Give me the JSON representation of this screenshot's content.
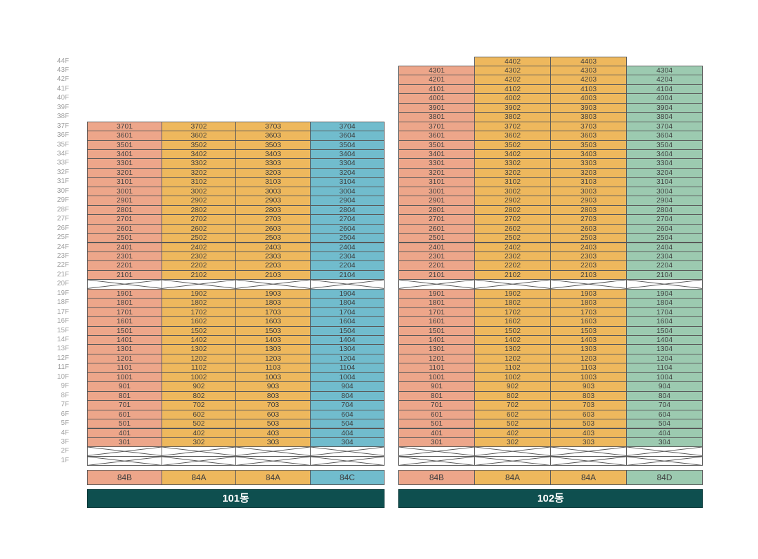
{
  "colors": {
    "B": "#eda68a",
    "A": "#eeb85d",
    "C": "#71bccd",
    "D": "#9ccab0",
    "building_label_bg": "#0e4f4f"
  },
  "floor_labels": [
    "44F",
    "43F",
    "42F",
    "41F",
    "40F",
    "39F",
    "38F",
    "37F",
    "36F",
    "35F",
    "34F",
    "33F",
    "32F",
    "31F",
    "30F",
    "29F",
    "28F",
    "27F",
    "26F",
    "25F",
    "24F",
    "23F",
    "22F",
    "21F",
    "20F",
    "19F",
    "18F",
    "17F",
    "16F",
    "15F",
    "14F",
    "13F",
    "12F",
    "11F",
    "10F",
    "9F",
    "8F",
    "7F",
    "6F",
    "5F",
    "4F",
    "3F",
    "2F",
    "1F"
  ],
  "buildings": [
    {
      "name": "101동",
      "types": [
        "84B",
        "84A",
        "84A",
        "84C"
      ],
      "type_keys": [
        "B",
        "A",
        "A",
        "C"
      ],
      "columns": [
        {
          "top": 37,
          "units": [
            "3701",
            "3601",
            "3501",
            "3401",
            "3301",
            "3201",
            "3101",
            "3001",
            "2901",
            "2801",
            "2701",
            "2601",
            "2501",
            "2401",
            "2301",
            "2201",
            "2101",
            "",
            "1901",
            "1801",
            "1701",
            "1601",
            "1501",
            "1401",
            "1301",
            "1201",
            "1101",
            "1001",
            "901",
            "801",
            "701",
            "601",
            "501",
            "401",
            "301",
            "",
            ""
          ]
        },
        {
          "top": 37,
          "units": [
            "3702",
            "3602",
            "3502",
            "3402",
            "3302",
            "3202",
            "3102",
            "3002",
            "2902",
            "2802",
            "2702",
            "2602",
            "2502",
            "2402",
            "2302",
            "2202",
            "2102",
            "",
            "1902",
            "1802",
            "1702",
            "1602",
            "1502",
            "1402",
            "1302",
            "1202",
            "1102",
            "1002",
            "902",
            "802",
            "702",
            "602",
            "502",
            "402",
            "302",
            "",
            ""
          ]
        },
        {
          "top": 37,
          "units": [
            "3703",
            "3603",
            "3503",
            "3403",
            "3303",
            "3203",
            "3103",
            "3003",
            "2903",
            "2803",
            "2703",
            "2603",
            "2503",
            "2403",
            "2303",
            "2203",
            "2103",
            "",
            "1903",
            "1803",
            "1703",
            "1603",
            "1503",
            "1403",
            "1303",
            "1203",
            "1103",
            "1003",
            "903",
            "803",
            "703",
            "603",
            "503",
            "403",
            "303",
            "",
            ""
          ]
        },
        {
          "top": 37,
          "units": [
            "3704",
            "3604",
            "3504",
            "3404",
            "3304",
            "3204",
            "3104",
            "3004",
            "2904",
            "2804",
            "2704",
            "2604",
            "2504",
            "2404",
            "2304",
            "2204",
            "2104",
            "",
            "1904",
            "1804",
            "1704",
            "1604",
            "1504",
            "1404",
            "1304",
            "1204",
            "1104",
            "1004",
            "904",
            "804",
            "704",
            "604",
            "504",
            "404",
            "304",
            "",
            ""
          ]
        }
      ]
    },
    {
      "name": "102동",
      "types": [
        "84B",
        "84A",
        "84A",
        "84D"
      ],
      "type_keys": [
        "B",
        "A",
        "A",
        "D"
      ],
      "columns": [
        {
          "top": 43,
          "units": [
            "4301",
            "4201",
            "4101",
            "4001",
            "3901",
            "3801",
            "3701",
            "3601",
            "3501",
            "3401",
            "3301",
            "3201",
            "3101",
            "3001",
            "2901",
            "2801",
            "2701",
            "2601",
            "2501",
            "2401",
            "2301",
            "2201",
            "2101",
            "",
            "1901",
            "1801",
            "1701",
            "1601",
            "1501",
            "1401",
            "1301",
            "1201",
            "1101",
            "1001",
            "901",
            "801",
            "701",
            "601",
            "501",
            "401",
            "301",
            "",
            ""
          ]
        },
        {
          "top": 44,
          "units": [
            "4402",
            "4302",
            "4202",
            "4102",
            "4002",
            "3902",
            "3802",
            "3702",
            "3602",
            "3502",
            "3402",
            "3302",
            "3202",
            "3102",
            "3002",
            "2902",
            "2802",
            "2702",
            "2602",
            "2502",
            "2402",
            "2302",
            "2202",
            "2102",
            "",
            "1902",
            "1802",
            "1702",
            "1602",
            "1502",
            "1402",
            "1302",
            "1202",
            "1102",
            "1002",
            "902",
            "802",
            "702",
            "602",
            "502",
            "402",
            "302",
            "",
            ""
          ]
        },
        {
          "top": 44,
          "units": [
            "4403",
            "4303",
            "4203",
            "4103",
            "4003",
            "3903",
            "3803",
            "3703",
            "3603",
            "3503",
            "3403",
            "3303",
            "3203",
            "3103",
            "3003",
            "2903",
            "2803",
            "2703",
            "2603",
            "2503",
            "2403",
            "2303",
            "2203",
            "2103",
            "",
            "1903",
            "1803",
            "1703",
            "1603",
            "1503",
            "1403",
            "1303",
            "1203",
            "1103",
            "1003",
            "903",
            "803",
            "703",
            "603",
            "503",
            "403",
            "303",
            "",
            ""
          ]
        },
        {
          "top": 43,
          "units": [
            "4304",
            "4204",
            "4104",
            "4004",
            "3904",
            "3804",
            "3704",
            "3604",
            "3504",
            "3404",
            "3304",
            "3204",
            "3104",
            "3004",
            "2904",
            "2804",
            "2704",
            "2604",
            "2504",
            "2404",
            "2304",
            "2204",
            "2104",
            "",
            "1904",
            "1804",
            "1704",
            "1604",
            "1504",
            "1404",
            "1304",
            "1204",
            "1104",
            "1004",
            "904",
            "804",
            "704",
            "604",
            "504",
            "404",
            "304",
            "",
            ""
          ]
        }
      ]
    }
  ]
}
